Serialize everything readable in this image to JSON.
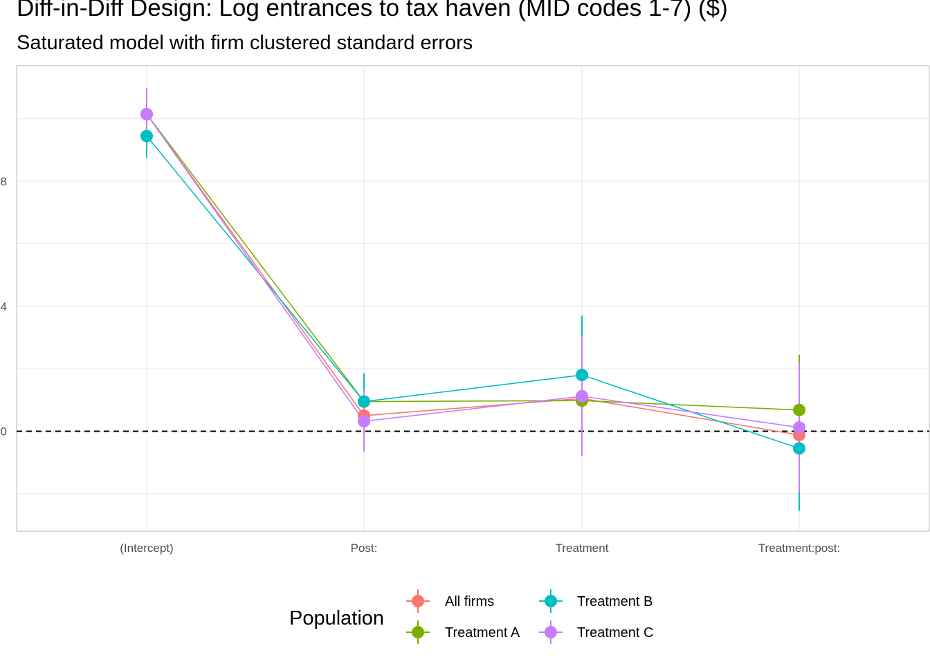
{
  "chart_data": {
    "type": "line",
    "title": "Diff-in-Diff Design: Log entrances to tax haven (MID codes 1-7)  ($)",
    "subtitle": "Saturated model with firm clustered standard errors",
    "xlabel": "",
    "ylabel": "",
    "categories": [
      "(Intercept)",
      "Post:",
      "Treatment",
      "Treatment:post:"
    ],
    "y_ticks": [
      0,
      4,
      8
    ],
    "ylim": [
      -3.2,
      11.7
    ],
    "grid": true,
    "reference_line": {
      "y": 0,
      "style": "dashed"
    },
    "legend": {
      "title": "Population",
      "position": "bottom"
    },
    "series": [
      {
        "name": "All firms",
        "color": "#F8766D",
        "values": [
          10.15,
          0.5,
          1.05,
          -0.12
        ],
        "lower": [
          10.1,
          0.45,
          1.0,
          -0.2
        ],
        "upper": [
          10.2,
          0.55,
          1.1,
          -0.05
        ]
      },
      {
        "name": "Treatment A",
        "color": "#7CAE00",
        "values": [
          10.15,
          0.95,
          0.98,
          0.68
        ],
        "lower": [
          10.1,
          0.9,
          0.93,
          -1.0
        ],
        "upper": [
          10.2,
          1.0,
          1.03,
          2.45
        ]
      },
      {
        "name": "Treatment B",
        "color": "#00BFC4",
        "values": [
          9.45,
          0.95,
          1.8,
          -0.55
        ],
        "lower": [
          8.75,
          0.1,
          -0.1,
          -2.55
        ],
        "upper": [
          10.15,
          1.85,
          3.7,
          1.4
        ]
      },
      {
        "name": "Treatment C",
        "color": "#C77CFF",
        "values": [
          10.15,
          0.32,
          1.12,
          0.12
        ],
        "lower": [
          9.3,
          -0.65,
          -0.8,
          -1.95
        ],
        "upper": [
          11.0,
          1.3,
          3.05,
          2.2
        ]
      }
    ]
  }
}
